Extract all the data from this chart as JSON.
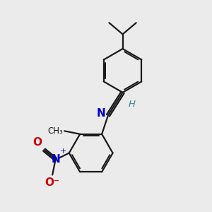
{
  "background_color": "#ebebeb",
  "bond_color": "#1a1a1a",
  "nitrogen_color": "#0000cc",
  "oxygen_color": "#cc0000",
  "teal_color": "#3a8a8a",
  "figsize": [
    3.0,
    3.0
  ],
  "dpi": 100,
  "xlim": [
    0,
    10
  ],
  "ylim": [
    0,
    10
  ]
}
